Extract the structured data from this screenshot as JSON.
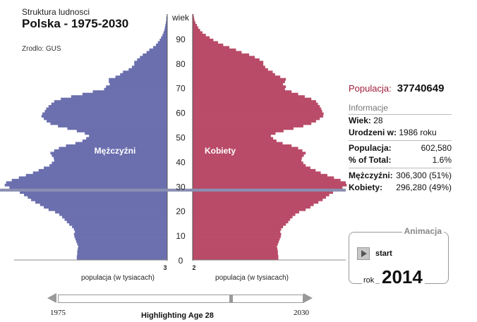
{
  "header": {
    "subtitle": "Struktura ludnosci",
    "title": "Polska - 1975-2030",
    "source": "Zrodlo: GUS"
  },
  "chart_data": {
    "type": "bar",
    "orientation": "horizontal-population-pyramid",
    "y_axis_label": "wiek",
    "y_ticks": [
      0,
      10,
      20,
      30,
      40,
      50,
      60,
      70,
      80,
      90
    ],
    "ylim": [
      0,
      100
    ],
    "x_axis_left_end": "3",
    "x_axis_right_end": "2",
    "xlabel_left": "populacja (w tysiacach)",
    "xlabel_right": "populacja (w tysiacach)",
    "male_label": "Mężczyźni",
    "female_label": "Kobiety",
    "colors": {
      "male": "#6b6fae",
      "female": "#b94b68",
      "highlight": "#8a8fb2"
    },
    "highlight_age": 28,
    "max_value": 355,
    "series": [
      {
        "name": "Mężczyźni",
        "values": [
          192,
          192,
          191,
          191,
          190,
          189,
          191,
          193,
          195,
          197,
          198,
          196,
          198,
          202,
          208,
          213,
          218,
          223,
          229,
          238,
          252,
          262,
          270,
          280,
          289,
          296,
          304,
          313,
          306,
          335,
          345,
          342,
          330,
          315,
          300,
          285,
          273,
          262,
          250,
          245,
          240,
          241,
          245,
          248,
          240,
          230,
          215,
          195,
          180,
          172,
          166,
          175,
          192,
          212,
          232,
          248,
          256,
          262,
          267,
          265,
          260,
          257,
          252,
          246,
          240,
          226,
          204,
          180,
          158,
          134,
          130,
          122,
          124,
          124,
          110,
          100,
          94,
          82,
          75,
          70,
          70,
          64,
          58,
          52,
          44,
          38,
          30,
          24,
          20,
          16,
          13,
          10,
          8,
          6,
          5,
          4,
          3,
          2,
          2,
          1
        ]
      },
      {
        "name": "Kobiety",
        "values": [
          182,
          182,
          181,
          181,
          180,
          179,
          181,
          183,
          185,
          187,
          188,
          186,
          188,
          192,
          198,
          203,
          207,
          212,
          218,
          226,
          240,
          250,
          257,
          267,
          276,
          283,
          290,
          298,
          296,
          318,
          327,
          325,
          314,
          300,
          286,
          272,
          261,
          250,
          240,
          235,
          231,
          232,
          236,
          240,
          233,
          224,
          210,
          191,
          178,
          171,
          166,
          176,
          193,
          214,
          235,
          252,
          262,
          270,
          277,
          278,
          275,
          273,
          270,
          266,
          262,
          252,
          238,
          224,
          210,
          196,
          198,
          192,
          196,
          198,
          186,
          175,
          170,
          160,
          154,
          150,
          150,
          142,
          132,
          120,
          104,
          92,
          78,
          65,
          54,
          44,
          36,
          28,
          21,
          16,
          12,
          9,
          6,
          4,
          3,
          2
        ]
      }
    ]
  },
  "info": {
    "population_label": "Populacja:",
    "population_total": "37740649",
    "section_header": "Informacje",
    "age_label": "Wiek:",
    "age_value": "28",
    "born_label": "Urodzeni w:",
    "born_value": "1986 roku",
    "pop_label": "Populacja:",
    "pop_value": "602,580",
    "pct_label": "% of Total:",
    "pct_value": "1.6%",
    "men_label": "Mężczyźni:",
    "men_value": "306,300 (51%)",
    "women_label": "Kobiety:",
    "women_value": "296,280 (49%)"
  },
  "animation": {
    "legend": "Animacja",
    "start_label": "start",
    "year_label": "rok",
    "year_value": "2014"
  },
  "slider": {
    "year_start": "1975",
    "year_end": "2030",
    "current_year": 2014,
    "highlight_text": "Highlighting Age 28"
  }
}
